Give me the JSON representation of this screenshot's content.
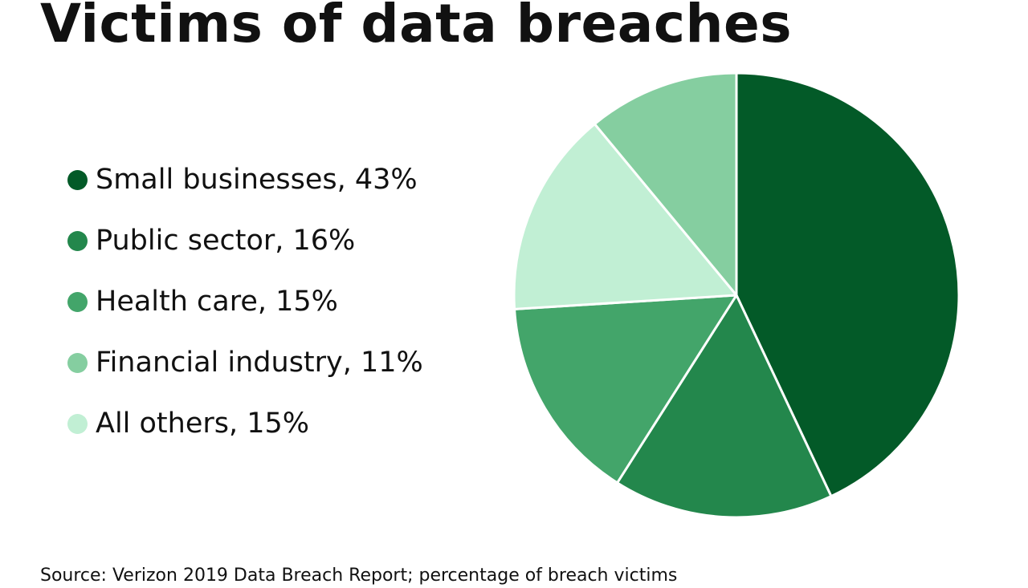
{
  "header": {
    "title": "Victims of data breaches"
  },
  "footer": {
    "source": "Source: Verizon 2019 Data Breach Report; percentage of breach victims"
  },
  "legend": {
    "items": [
      {
        "label": "Small businesses, 43%"
      },
      {
        "label": "Public sector, 16%"
      },
      {
        "label": "Health care, 15%"
      },
      {
        "label": "Financial industry, 11%"
      },
      {
        "label": "All others, 15%"
      }
    ]
  },
  "chart_data": {
    "type": "pie",
    "title": "Victims of data breaches",
    "categories": [
      "Small businesses",
      "Public sector",
      "Health care",
      "All others",
      "Financial industry"
    ],
    "values": [
      43,
      16,
      15,
      15,
      11
    ],
    "unit": "%",
    "colors": [
      "#035a28",
      "#23874c",
      "#43a56a",
      "#c1efd4",
      "#85cea0"
    ],
    "legend": "left"
  }
}
